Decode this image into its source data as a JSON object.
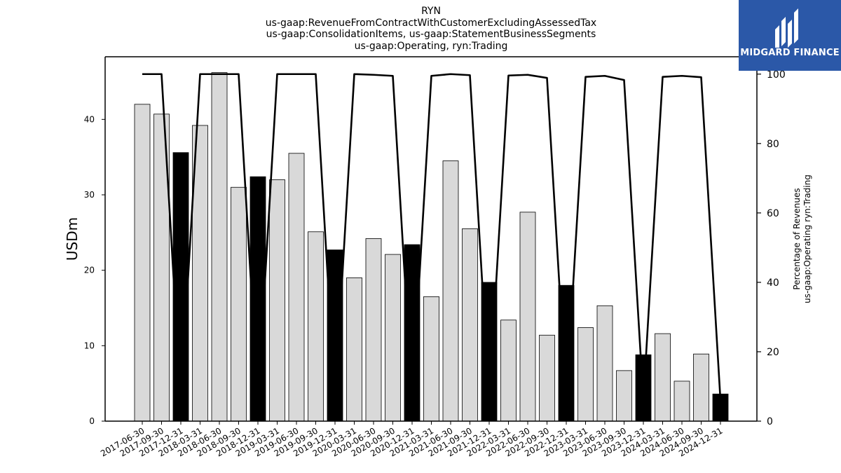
{
  "chart_data": {
    "type": "bar",
    "title_lines": [
      "RYN",
      "us-gaap:RevenueFromContractWithCustomerExcludingAssessedTax",
      "us-gaap:ConsolidationItems, us-gaap:StatementBusinessSegments",
      "us-gaap:Operating, ryn:Trading"
    ],
    "ylabel": "USDm",
    "y2label_lines": [
      "Percentage of Revenues",
      "us-gaap:Operating ryn:Trading"
    ],
    "categories": [
      "2017-06-30",
      "2017-09-30",
      "2017-12-31",
      "2018-03-31",
      "2018-06-30",
      "2018-09-30",
      "2018-12-31",
      "2019-03-31",
      "2019-06-30",
      "2019-09-30",
      "2019-12-31",
      "2020-03-31",
      "2020-06-30",
      "2020-09-30",
      "2020-12-31",
      "2021-03-31",
      "2021-06-30",
      "2021-09-30",
      "2021-12-31",
      "2022-03-31",
      "2022-06-30",
      "2022-09-30",
      "2022-12-31",
      "2023-03-31",
      "2023-06-30",
      "2023-09-30",
      "2023-12-31",
      "2024-03-31",
      "2024-06-30",
      "2024-09-30",
      "2024-12-31"
    ],
    "values": [
      42.0,
      40.7,
      35.6,
      39.2,
      46.2,
      31.0,
      32.4,
      32.0,
      35.5,
      25.1,
      22.7,
      19.0,
      24.2,
      22.1,
      23.4,
      16.5,
      34.5,
      25.5,
      18.4,
      13.4,
      27.7,
      11.4,
      18.0,
      12.4,
      15.3,
      6.7,
      8.8,
      11.6,
      5.3,
      8.9,
      3.6
    ],
    "highlighted": [
      false,
      false,
      true,
      false,
      false,
      false,
      true,
      false,
      false,
      false,
      true,
      false,
      false,
      false,
      true,
      false,
      false,
      false,
      true,
      false,
      false,
      false,
      true,
      false,
      false,
      false,
      true,
      false,
      false,
      false,
      true
    ],
    "pct_series": [
      100,
      100,
      6,
      100,
      100,
      100,
      6,
      100,
      100,
      100,
      6,
      100,
      99.8,
      99.5,
      6,
      99.5,
      100,
      99.7,
      6,
      99.6,
      99.8,
      98.9,
      6,
      99.2,
      99.5,
      98.3,
      6,
      99.2,
      99.5,
      99.1,
      6
    ],
    "ylim": [
      0,
      48.3
    ],
    "y2lim": [
      0,
      105.0
    ],
    "yticks": [
      0,
      10,
      20,
      30,
      40
    ],
    "y2ticks": [
      0,
      20,
      40,
      60,
      80,
      100
    ],
    "colors": {
      "bar": "#d9d9d9",
      "bar_highlight": "#000000",
      "bar_edge": "#000000",
      "line": "#000000"
    }
  },
  "logo": {
    "text": "MIDGARD FINANCE",
    "color": "#2b58a8"
  }
}
